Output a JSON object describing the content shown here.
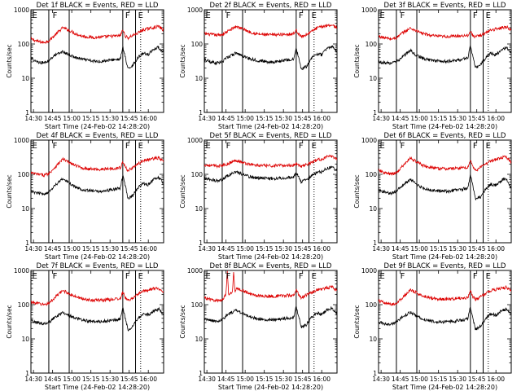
{
  "figure": {
    "panel_titles": [
      "Det 1f BLACK = Events, RED = LLD",
      "Det 2f BLACK = Events, RED = LLD",
      "Det 3f BLACK = Events, RED = LLD",
      "Det 4f BLACK = Events, RED = LLD",
      "Det 5f BLACK = Events, RED = LLD",
      "Det 6f BLACK = Events, RED = LLD",
      "Det 7f BLACK = Events, RED = LLD",
      "Det 8f BLACK = Events, RED = LLD",
      "Det 9f BLACK = Events, RED = LLD"
    ],
    "ylabel": "Counts/sec",
    "xlabel": "Start Time (24-Feb-02 14:28:20)",
    "x_tick_labels": [
      "14:30",
      "14:45",
      "15:00",
      "15:15",
      "15:30",
      "15:45",
      "16:00"
    ],
    "y_tick_labels": [
      "1",
      "10",
      "100",
      "1000"
    ],
    "markers": [
      "E",
      "F",
      "F",
      "E"
    ]
  },
  "colors": {
    "events": "#000000",
    "lld": "#dd0000",
    "axes": "#000000"
  },
  "chart_data": {
    "type": "line",
    "layout": "3x3 grid of identical-format panels",
    "y_scale": "log",
    "ylim": [
      1,
      1000
    ],
    "x_units": "minutes after 14:28:20 start time",
    "xlim": [
      0,
      104
    ],
    "grid": false,
    "legend": "none (colour key given in each panel title)",
    "solid_vertical_lines_x": [
      14,
      30,
      72,
      82
    ],
    "dotted_vertical_lines_x": [
      86,
      105
    ],
    "marker_label_x": [
      0,
      16,
      73,
      83
    ],
    "panels": [
      {
        "events": {
          "x": [
            0,
            5,
            10,
            14,
            18,
            25,
            30,
            35,
            40,
            45,
            50,
            55,
            60,
            65,
            70,
            72,
            74,
            76,
            80,
            84,
            88,
            92,
            96,
            100,
            104
          ],
          "y": [
            38,
            30,
            28,
            33,
            45,
            60,
            48,
            40,
            36,
            33,
            31,
            31,
            33,
            35,
            36,
            80,
            40,
            18,
            25,
            40,
            55,
            50,
            70,
            80,
            55
          ]
        },
        "lld": {
          "x": [
            0,
            5,
            10,
            14,
            18,
            25,
            30,
            35,
            40,
            45,
            50,
            55,
            60,
            65,
            70,
            72,
            74,
            76,
            80,
            84,
            88,
            92,
            96,
            100,
            104
          ],
          "y": [
            140,
            120,
            110,
            125,
            170,
            300,
            250,
            200,
            170,
            160,
            155,
            160,
            165,
            170,
            175,
            260,
            170,
            150,
            180,
            210,
            260,
            280,
            300,
            330,
            250
          ]
        }
      },
      {
        "events": {
          "x": [
            0,
            5,
            10,
            14,
            18,
            25,
            30,
            35,
            40,
            45,
            50,
            55,
            60,
            65,
            70,
            72,
            74,
            76,
            80,
            84,
            88,
            92,
            96,
            100,
            104
          ],
          "y": [
            35,
            30,
            28,
            30,
            40,
            55,
            45,
            38,
            34,
            32,
            30,
            30,
            32,
            34,
            35,
            75,
            38,
            18,
            22,
            38,
            52,
            48,
            75,
            85,
            60
          ]
        },
        "lld": {
          "x": [
            0,
            5,
            10,
            14,
            18,
            25,
            30,
            35,
            40,
            45,
            50,
            55,
            60,
            65,
            70,
            72,
            74,
            76,
            80,
            84,
            88,
            92,
            96,
            100,
            104
          ],
          "y": [
            200,
            190,
            180,
            190,
            230,
            330,
            280,
            230,
            200,
            190,
            185,
            185,
            190,
            195,
            200,
            250,
            200,
            160,
            190,
            230,
            290,
            320,
            350,
            360,
            300
          ]
        }
      },
      {
        "events": {
          "x": [
            0,
            5,
            10,
            14,
            18,
            25,
            30,
            35,
            40,
            45,
            50,
            55,
            60,
            65,
            70,
            72,
            74,
            76,
            80,
            84,
            88,
            92,
            96,
            100,
            104
          ],
          "y": [
            30,
            28,
            28,
            30,
            40,
            65,
            45,
            38,
            34,
            33,
            31,
            31,
            33,
            35,
            40,
            90,
            40,
            20,
            25,
            40,
            55,
            48,
            65,
            80,
            55
          ]
        },
        "lld": {
          "x": [
            0,
            5,
            10,
            14,
            18,
            25,
            30,
            35,
            40,
            45,
            50,
            55,
            60,
            65,
            70,
            72,
            74,
            76,
            80,
            84,
            88,
            92,
            96,
            100,
            104
          ],
          "y": [
            170,
            150,
            140,
            150,
            200,
            290,
            240,
            200,
            180,
            170,
            165,
            165,
            170,
            175,
            180,
            230,
            180,
            160,
            180,
            210,
            260,
            270,
            300,
            320,
            260
          ]
        }
      },
      {
        "events": {
          "x": [
            0,
            5,
            10,
            14,
            18,
            25,
            30,
            35,
            40,
            45,
            50,
            55,
            60,
            65,
            70,
            72,
            74,
            76,
            80,
            84,
            88,
            92,
            96,
            100,
            104
          ],
          "y": [
            32,
            28,
            27,
            30,
            45,
            75,
            55,
            42,
            36,
            34,
            32,
            32,
            34,
            36,
            40,
            90,
            45,
            20,
            24,
            40,
            55,
            50,
            70,
            80,
            55
          ]
        },
        "lld": {
          "x": [
            0,
            5,
            10,
            14,
            18,
            25,
            30,
            35,
            40,
            45,
            50,
            55,
            60,
            65,
            70,
            72,
            74,
            76,
            80,
            84,
            88,
            92,
            96,
            100,
            104
          ],
          "y": [
            110,
            100,
            95,
            105,
            150,
            280,
            220,
            180,
            155,
            145,
            140,
            140,
            145,
            150,
            155,
            230,
            160,
            130,
            160,
            200,
            250,
            270,
            290,
            300,
            240
          ]
        }
      },
      {
        "events": {
          "x": [
            0,
            5,
            10,
            14,
            18,
            25,
            30,
            35,
            40,
            45,
            50,
            55,
            60,
            65,
            70,
            72,
            74,
            76,
            80,
            84,
            88,
            92,
            96,
            100,
            104
          ],
          "y": [
            80,
            70,
            65,
            70,
            90,
            120,
            100,
            85,
            80,
            78,
            76,
            76,
            78,
            80,
            82,
            110,
            85,
            60,
            70,
            90,
            110,
            120,
            150,
            160,
            130
          ]
        },
        "lld": {
          "x": [
            0,
            5,
            10,
            14,
            18,
            25,
            30,
            35,
            40,
            45,
            50,
            55,
            60,
            65,
            70,
            72,
            74,
            76,
            80,
            84,
            88,
            92,
            96,
            100,
            104
          ],
          "y": [
            190,
            180,
            175,
            180,
            200,
            260,
            220,
            200,
            185,
            180,
            178,
            178,
            180,
            182,
            185,
            210,
            190,
            170,
            190,
            220,
            260,
            280,
            320,
            340,
            280
          ]
        }
      },
      {
        "events": {
          "x": [
            0,
            5,
            10,
            14,
            18,
            25,
            30,
            35,
            40,
            45,
            50,
            55,
            60,
            65,
            70,
            72,
            74,
            76,
            80,
            84,
            88,
            92,
            96,
            100,
            104
          ],
          "y": [
            35,
            30,
            28,
            32,
            45,
            70,
            50,
            40,
            35,
            33,
            32,
            32,
            34,
            36,
            40,
            100,
            45,
            18,
            22,
            38,
            52,
            48,
            65,
            75,
            40
          ]
        },
        "lld": {
          "x": [
            0,
            5,
            10,
            14,
            18,
            25,
            30,
            35,
            40,
            45,
            50,
            55,
            60,
            65,
            70,
            72,
            74,
            76,
            80,
            84,
            88,
            92,
            96,
            100,
            104
          ],
          "y": [
            130,
            110,
            100,
            110,
            160,
            300,
            230,
            180,
            160,
            150,
            145,
            145,
            150,
            155,
            160,
            260,
            170,
            130,
            160,
            200,
            250,
            270,
            300,
            320,
            230
          ]
        }
      },
      {
        "events": {
          "x": [
            0,
            5,
            10,
            14,
            18,
            25,
            30,
            35,
            40,
            45,
            50,
            55,
            60,
            65,
            70,
            72,
            74,
            76,
            80,
            84,
            88,
            92,
            96,
            100,
            104
          ],
          "y": [
            35,
            30,
            28,
            30,
            40,
            60,
            48,
            40,
            36,
            33,
            32,
            32,
            34,
            36,
            38,
            80,
            40,
            18,
            24,
            40,
            55,
            50,
            65,
            75,
            50
          ]
        },
        "lld": {
          "x": [
            0,
            5,
            10,
            14,
            18,
            25,
            30,
            35,
            40,
            45,
            50,
            55,
            60,
            65,
            70,
            72,
            74,
            76,
            80,
            84,
            88,
            92,
            96,
            100,
            104
          ],
          "y": [
            120,
            110,
            100,
            110,
            150,
            260,
            210,
            170,
            150,
            140,
            135,
            135,
            140,
            145,
            150,
            230,
            160,
            130,
            160,
            200,
            250,
            270,
            290,
            300,
            240
          ]
        }
      },
      {
        "events": {
          "x": [
            0,
            5,
            10,
            14,
            18,
            25,
            30,
            35,
            40,
            45,
            50,
            55,
            60,
            65,
            70,
            72,
            74,
            76,
            80,
            84,
            88,
            92,
            96,
            100,
            104
          ],
          "y": [
            40,
            35,
            32,
            36,
            50,
            70,
            55,
            45,
            40,
            38,
            36,
            36,
            38,
            40,
            42,
            90,
            45,
            22,
            26,
            42,
            58,
            52,
            70,
            80,
            55
          ]
        },
        "lld": {
          "x": [
            0,
            5,
            10,
            14,
            17,
            18,
            19,
            22,
            23,
            24,
            25,
            30,
            35,
            40,
            45,
            50,
            55,
            60,
            65,
            70,
            72,
            74,
            76,
            80,
            84,
            88,
            92,
            96,
            100,
            104
          ],
          "y": [
            160,
            140,
            130,
            140,
            200,
            1000,
            200,
            220,
            1000,
            240,
            300,
            260,
            210,
            190,
            180,
            175,
            175,
            180,
            185,
            190,
            280,
            190,
            160,
            190,
            220,
            270,
            290,
            310,
            330,
            260
          ]
        }
      },
      {
        "events": {
          "x": [
            0,
            5,
            10,
            14,
            18,
            25,
            30,
            35,
            40,
            45,
            50,
            55,
            60,
            65,
            70,
            72,
            74,
            76,
            80,
            84,
            88,
            92,
            96,
            100,
            104
          ],
          "y": [
            30,
            28,
            27,
            30,
            42,
            60,
            46,
            38,
            34,
            32,
            31,
            31,
            33,
            35,
            38,
            85,
            40,
            18,
            24,
            40,
            55,
            48,
            65,
            75,
            50
          ]
        },
        "lld": {
          "x": [
            0,
            5,
            10,
            14,
            18,
            25,
            30,
            35,
            40,
            45,
            50,
            55,
            60,
            65,
            70,
            72,
            74,
            76,
            80,
            84,
            88,
            92,
            96,
            100,
            104
          ],
          "y": [
            130,
            110,
            100,
            110,
            150,
            270,
            220,
            180,
            160,
            150,
            145,
            145,
            150,
            155,
            160,
            260,
            170,
            140,
            170,
            210,
            260,
            280,
            300,
            320,
            250
          ]
        }
      }
    ]
  }
}
